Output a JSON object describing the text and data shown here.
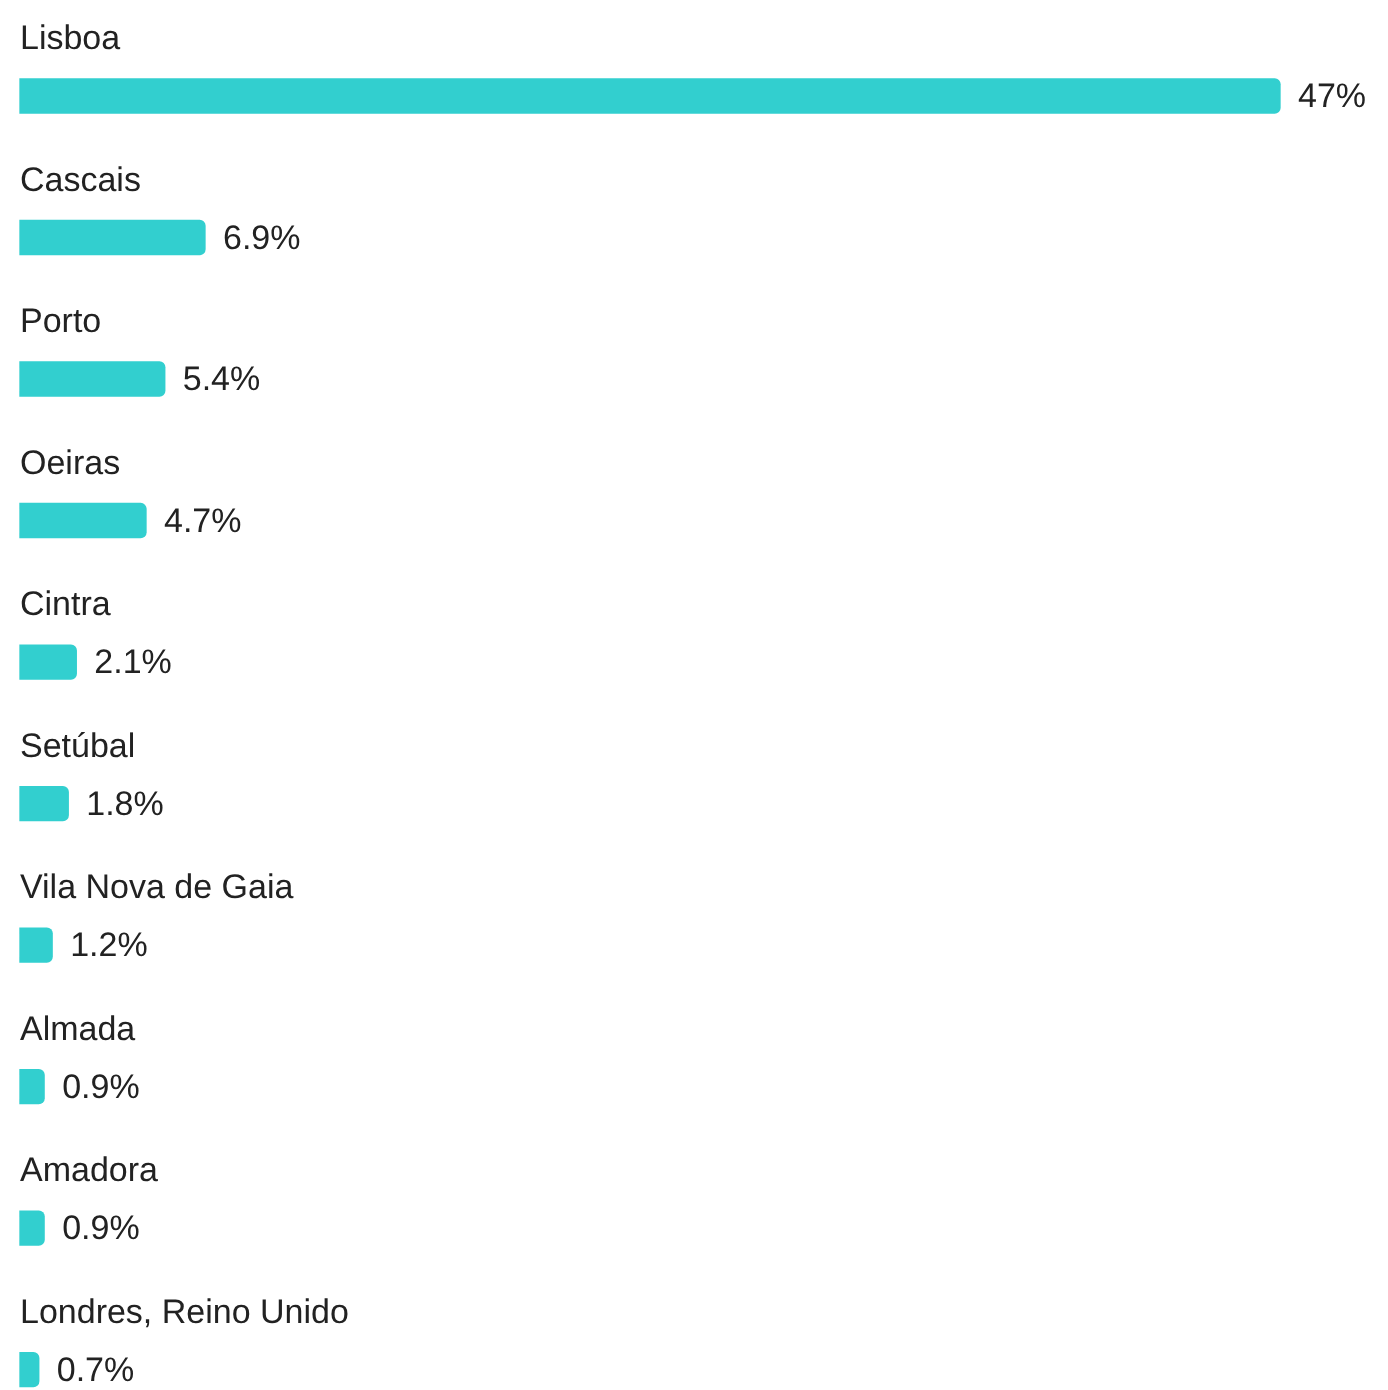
{
  "chart_data": {
    "type": "bar",
    "orientation": "horizontal",
    "categories": [
      "Lisboa",
      "Cascais",
      "Porto",
      "Oeiras",
      "Cintra",
      "Setúbal",
      "Vila Nova de Gaia",
      "Almada",
      "Amadora",
      "Londres, Reino Unido"
    ],
    "values": [
      47,
      6.9,
      5.4,
      4.7,
      2.1,
      1.8,
      1.2,
      0.9,
      0.9,
      0.7
    ],
    "value_labels": [
      "47%",
      "6.9%",
      "5.4%",
      "4.7%",
      "2.1%",
      "1.8%",
      "1.2%",
      "0.9%",
      "0.9%",
      "0.7%"
    ],
    "color": "#32cfcf",
    "legend": false
  }
}
